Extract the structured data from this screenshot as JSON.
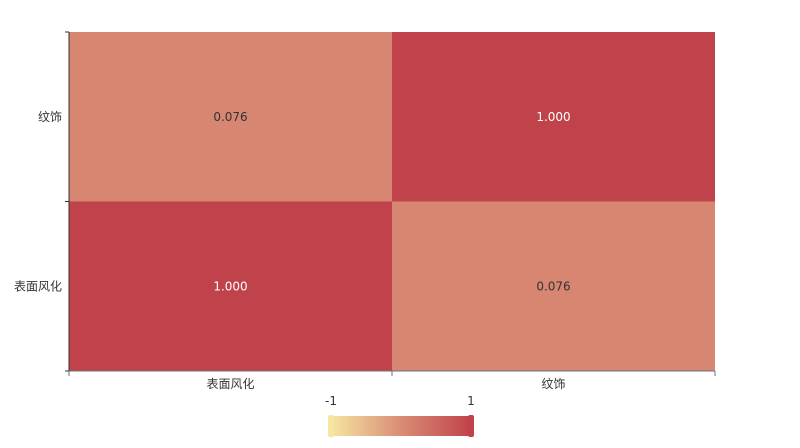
{
  "chart_data": {
    "type": "heatmap",
    "title": "",
    "x_categories": [
      "表面风化",
      "纹饰"
    ],
    "y_categories": [
      "表面风化",
      "纹饰"
    ],
    "values": [
      [
        1.0,
        0.076
      ],
      [
        0.076,
        1.0
      ]
    ],
    "cell_labels": [
      [
        "1.000",
        "0.076"
      ],
      [
        "0.076",
        "1.000"
      ]
    ],
    "visual_map": {
      "min": -1,
      "max": 1,
      "min_label": "-1",
      "max_label": "1",
      "colors": [
        "#f5e6a1",
        "#d98c75",
        "#c0434b"
      ]
    },
    "high_label_color": "#ffffff",
    "low_label_color": "#333333"
  }
}
